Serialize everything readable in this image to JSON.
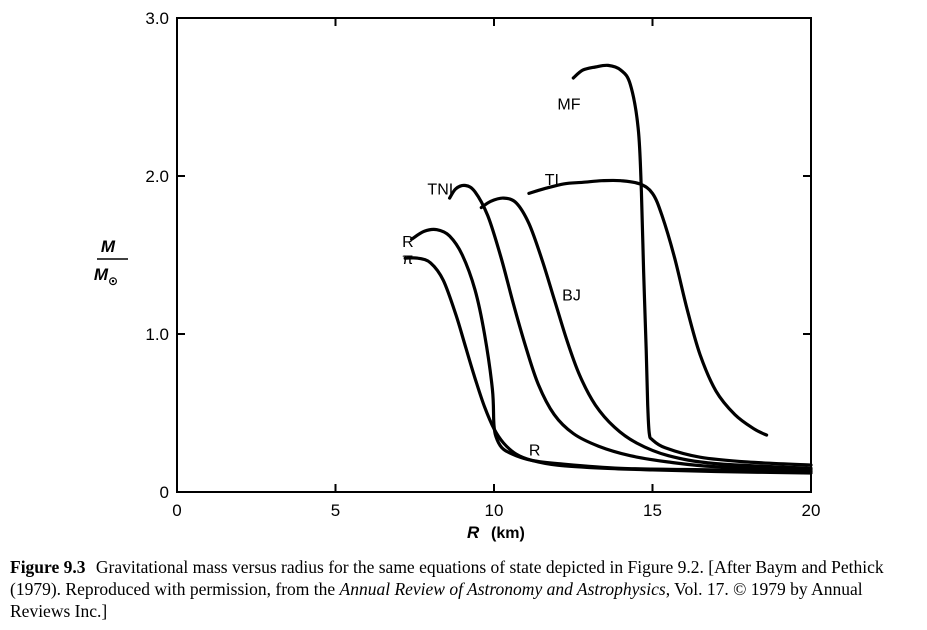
{
  "chart_data": {
    "type": "line",
    "title": "",
    "xlabel": {
      "symbol": "R",
      "unit": "(km)"
    },
    "ylabel": {
      "numerator": "M",
      "denominator": "M",
      "denominator_subscript": "⊙"
    },
    "xlim": [
      0,
      20
    ],
    "ylim": [
      0,
      3.0
    ],
    "xticks": [
      0,
      5,
      10,
      15,
      20
    ],
    "xtick_labels": [
      "0",
      "5",
      "10",
      "15",
      "20"
    ],
    "yticks": [
      0,
      1.0,
      2.0,
      3.0
    ],
    "ytick_labels": [
      "0",
      "1.0",
      "2.0",
      "3.0"
    ],
    "grid": false,
    "series": [
      {
        "name": "π",
        "label_at": [
          7.1,
          1.48
        ],
        "x": [
          7.2,
          7.6,
          8.0,
          8.4,
          8.8,
          9.1,
          9.4,
          9.7,
          10.0,
          10.3,
          10.7,
          11.2,
          12.0,
          13.5,
          15.0,
          17.0,
          20.0
        ],
        "y": [
          1.48,
          1.48,
          1.45,
          1.34,
          1.12,
          0.92,
          0.72,
          0.54,
          0.4,
          0.31,
          0.24,
          0.2,
          0.17,
          0.15,
          0.14,
          0.13,
          0.12
        ]
      },
      {
        "name": "R",
        "label_at": [
          7.1,
          1.59
        ],
        "x": [
          7.4,
          7.8,
          8.2,
          8.6,
          9.0,
          9.4,
          9.7,
          9.95,
          10.0,
          10.1,
          10.3,
          10.7,
          11.2,
          12.0,
          14.0,
          17.0,
          20.0
        ],
        "y": [
          1.6,
          1.65,
          1.66,
          1.62,
          1.5,
          1.28,
          1.0,
          0.65,
          0.42,
          0.33,
          0.27,
          0.23,
          0.2,
          0.18,
          0.15,
          0.14,
          0.13
        ]
      },
      {
        "name": "TNI",
        "label_at": [
          7.9,
          1.92
        ],
        "x": [
          8.6,
          8.8,
          9.1,
          9.4,
          9.8,
          10.2,
          10.6,
          11.0,
          11.4,
          11.9,
          12.5,
          13.3,
          14.3,
          15.5,
          17.0,
          20.0
        ],
        "y": [
          1.86,
          1.92,
          1.94,
          1.9,
          1.75,
          1.5,
          1.2,
          0.92,
          0.68,
          0.49,
          0.37,
          0.29,
          0.23,
          0.19,
          0.16,
          0.14
        ]
      },
      {
        "name": "BJ",
        "label_at": [
          12.15,
          1.25
        ],
        "x": [
          9.6,
          9.9,
          10.3,
          10.7,
          11.1,
          11.5,
          11.9,
          12.3,
          12.7,
          13.2,
          13.8,
          14.5,
          15.5,
          17.0,
          20.0
        ],
        "y": [
          1.8,
          1.84,
          1.86,
          1.83,
          1.7,
          1.48,
          1.22,
          0.96,
          0.74,
          0.55,
          0.41,
          0.31,
          0.23,
          0.18,
          0.15
        ]
      },
      {
        "name": "TI",
        "label_at": [
          11.6,
          1.98
        ],
        "x": [
          11.1,
          11.6,
          12.2,
          12.8,
          13.4,
          14.0,
          14.6,
          15.0,
          15.3,
          15.7,
          16.1,
          16.5,
          17.0,
          17.6,
          18.2,
          18.6
        ],
        "y": [
          1.89,
          1.92,
          1.95,
          1.96,
          1.97,
          1.97,
          1.95,
          1.89,
          1.75,
          1.48,
          1.15,
          0.87,
          0.64,
          0.49,
          0.4,
          0.36
        ]
      },
      {
        "name": "MF",
        "label_at": [
          12.0,
          2.46
        ],
        "x": [
          12.5,
          12.8,
          13.2,
          13.6,
          14.0,
          14.3,
          14.55,
          14.65,
          14.72,
          14.8,
          14.85,
          14.9,
          15.0,
          15.4,
          16.5,
          18.0,
          20.0
        ],
        "y": [
          2.62,
          2.67,
          2.69,
          2.7,
          2.67,
          2.58,
          2.3,
          1.9,
          1.4,
          0.9,
          0.55,
          0.37,
          0.33,
          0.28,
          0.22,
          0.19,
          0.17
        ]
      }
    ],
    "annotations": [
      {
        "text": "R",
        "at": [
          11.1,
          0.27
        ]
      }
    ]
  },
  "caption": {
    "figure_label": "Figure 9.3",
    "text1": "Gravitational mass versus radius for the same equations of state depicted in Figure 9.2. [After Baym and Pethick (1979). Reproduced with permission, from the",
    "journal": "Annual Review of Astronomy and Astrophysics",
    "text2": ", Vol. 17. © 1979 by Annual Reviews Inc.]"
  }
}
